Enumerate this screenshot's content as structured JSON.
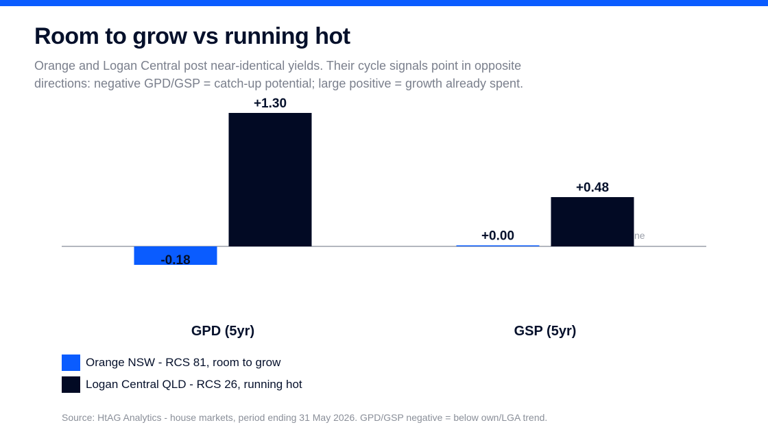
{
  "header": {
    "title": "Room to grow vs running hot",
    "subtitle": "Orange and Logan Central post near-identical yields. Their cycle signals point in opposite directions: negative GPD/GSP = catch-up potential; large positive = growth already spent."
  },
  "colors": {
    "accent_bar": "#0a5cff",
    "series_1": "#0a5cff",
    "series_2": "#020a24",
    "baseline": "#9a9ea8"
  },
  "chart_data": {
    "type": "bar",
    "categories": [
      "GPD (5yr)",
      "GSP (5yr)"
    ],
    "series": [
      {
        "name": "Orange NSW - RCS 81, room to grow",
        "values": [
          -0.18,
          0.0
        ],
        "labels": [
          "-0.18",
          "+0.00"
        ]
      },
      {
        "name": "Logan Central QLD - RCS 26, running hot",
        "values": [
          1.3,
          0.48
        ],
        "labels": [
          "+1.30",
          "+0.48"
        ]
      }
    ],
    "baseline_label": "ne",
    "legend_position": "bottom-left",
    "grid": false
  },
  "footer": {
    "source": "Source: HtAG Analytics - house markets, period ending 31 May 2026. GPD/GSP negative = below own/LGA trend."
  }
}
